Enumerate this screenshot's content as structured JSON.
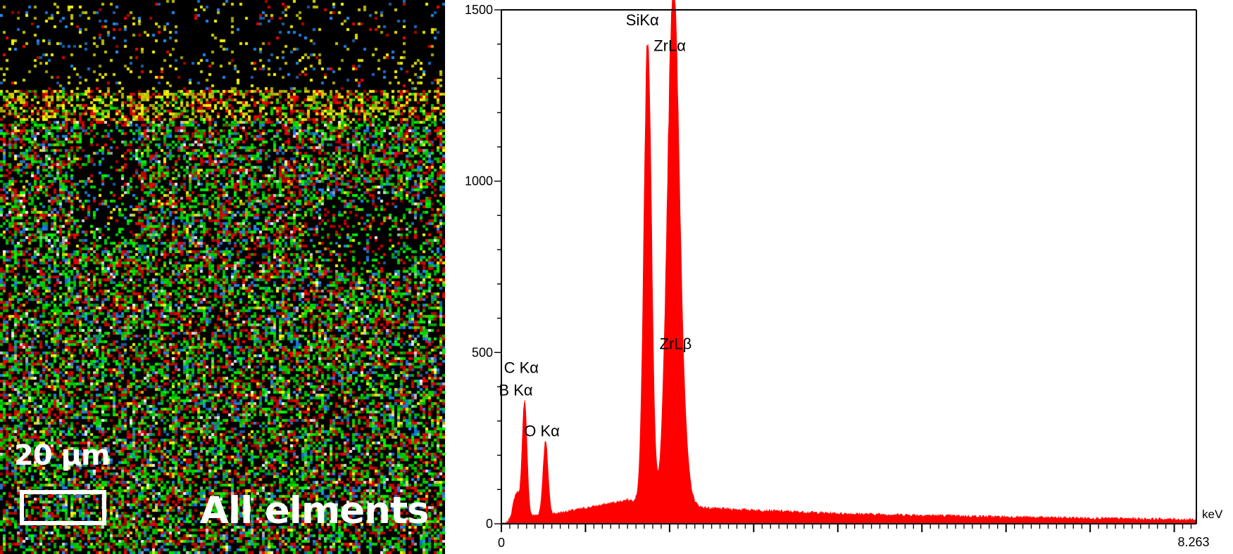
{
  "map_panel": {
    "scale_label": "20 µm",
    "caption": "All elments",
    "colors": [
      "#ff0000",
      "#00ff00",
      "#1e90ff",
      "#ffff00",
      "#ffffff"
    ]
  },
  "chart_data": {
    "type": "area",
    "title": "",
    "xlabel": "keV",
    "ylabel": "",
    "xlim": [
      0,
      8.263
    ],
    "ylim": [
      0,
      1500
    ],
    "x_tick_labels": [
      "0",
      "8.263"
    ],
    "y_tick_labels": [
      "0",
      "500",
      "1000",
      "1500"
    ],
    "series_color": "#ff0000",
    "grid": false,
    "peaks": [
      {
        "label": "C Kα",
        "x": 0.277,
        "y": 360
      },
      {
        "label": "B Kα",
        "x": 0.183,
        "y": 90
      },
      {
        "label": "O Kα",
        "x": 0.525,
        "y": 240
      },
      {
        "label": "SiKα",
        "x": 1.74,
        "y": 1430
      },
      {
        "label": "ZrLα",
        "x": 2.04,
        "y": 1450
      },
      {
        "label": "ZrLβ",
        "x": 2.12,
        "y": 600
      }
    ],
    "background": [
      {
        "x": 0.05,
        "y": 0
      },
      {
        "x": 0.15,
        "y": 20
      },
      {
        "x": 0.6,
        "y": 28
      },
      {
        "x": 1.2,
        "y": 55
      },
      {
        "x": 1.5,
        "y": 70
      },
      {
        "x": 2.5,
        "y": 45
      },
      {
        "x": 4.0,
        "y": 30
      },
      {
        "x": 6.0,
        "y": 20
      },
      {
        "x": 8.263,
        "y": 12
      }
    ],
    "annotations": [
      {
        "text": "SiKα",
        "x": 1.48,
        "y": 1455
      },
      {
        "text": "ZrLα",
        "x": 1.81,
        "y": 1380
      },
      {
        "text": "ZrLβ",
        "x": 1.88,
        "y": 510
      },
      {
        "text": "C Kα",
        "x": 0.03,
        "y": 440
      },
      {
        "text": "B Kα",
        "x": -0.03,
        "y": 375
      },
      {
        "text": "O Kα",
        "x": 0.27,
        "y": 255
      }
    ]
  }
}
